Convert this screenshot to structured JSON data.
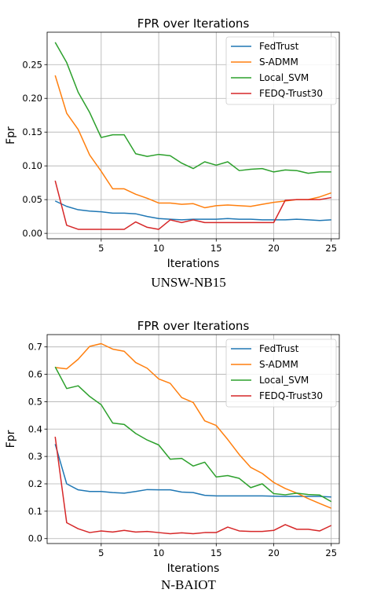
{
  "figures": [
    {
      "caption": "UNSW-NB15",
      "chart_data": {
        "type": "line",
        "title": "FPR over Iterations",
        "xlabel": "Iterations",
        "ylabel": "Fpr",
        "x": [
          1,
          2,
          3,
          4,
          5,
          6,
          7,
          8,
          9,
          10,
          11,
          12,
          13,
          14,
          15,
          16,
          17,
          18,
          19,
          20,
          21,
          22,
          23,
          24,
          25
        ],
        "xlim": [
          0.3,
          25.7
        ],
        "ylim": [
          -0.008,
          0.298
        ],
        "xticks": [
          0,
          5,
          10,
          15,
          20,
          25
        ],
        "yticks": [
          0.0,
          0.05,
          0.1,
          0.15,
          0.2,
          0.25
        ],
        "ytick_labels": [
          "0.00",
          "0.05",
          "0.10",
          "0.15",
          "0.20",
          "0.25"
        ],
        "grid": true,
        "legend_position": "top-right",
        "series": [
          {
            "name": "FedTrust",
            "color": "#1f77b4",
            "values": [
              0.048,
              0.04,
              0.035,
              0.033,
              0.032,
              0.03,
              0.03,
              0.029,
              0.025,
              0.022,
              0.021,
              0.02,
              0.021,
              0.021,
              0.021,
              0.022,
              0.021,
              0.021,
              0.02,
              0.02,
              0.02,
              0.021,
              0.02,
              0.019,
              0.02
            ]
          },
          {
            "name": "S-ADMM",
            "color": "#ff7f0e",
            "values": [
              0.234,
              0.178,
              0.154,
              0.116,
              0.092,
              0.066,
              0.066,
              0.058,
              0.052,
              0.045,
              0.045,
              0.043,
              0.044,
              0.038,
              0.041,
              0.042,
              0.041,
              0.04,
              0.043,
              0.046,
              0.048,
              0.05,
              0.05,
              0.054,
              0.06
            ]
          },
          {
            "name": "Local_SVM",
            "color": "#2ca02c",
            "values": [
              0.283,
              0.253,
              0.209,
              0.179,
              0.142,
              0.146,
              0.146,
              0.118,
              0.114,
              0.117,
              0.115,
              0.104,
              0.096,
              0.106,
              0.101,
              0.106,
              0.093,
              0.095,
              0.096,
              0.091,
              0.094,
              0.093,
              0.089,
              0.091,
              0.091
            ]
          },
          {
            "name": "FEDQ-Trust30",
            "color": "#d62728",
            "values": [
              0.078,
              0.012,
              0.006,
              0.006,
              0.006,
              0.006,
              0.006,
              0.017,
              0.009,
              0.006,
              0.02,
              0.016,
              0.02,
              0.016,
              0.016,
              0.016,
              0.016,
              0.016,
              0.016,
              0.016,
              0.049,
              0.05,
              0.05,
              0.05,
              0.053
            ]
          }
        ]
      }
    },
    {
      "caption": "N-BAIOT",
      "chart_data": {
        "type": "line",
        "title": "FPR over Iterations",
        "xlabel": "Iterations",
        "ylabel": "Fpr",
        "x": [
          1,
          2,
          3,
          4,
          5,
          6,
          7,
          8,
          9,
          10,
          11,
          12,
          13,
          14,
          15,
          16,
          17,
          18,
          19,
          20,
          21,
          22,
          23,
          24,
          25
        ],
        "xlim": [
          0.3,
          25.7
        ],
        "ylim": [
          -0.018,
          0.745
        ],
        "xticks": [
          0,
          5,
          10,
          15,
          20,
          25
        ],
        "yticks": [
          0.0,
          0.1,
          0.2,
          0.3,
          0.4,
          0.5,
          0.6,
          0.7
        ],
        "ytick_labels": [
          "0.0",
          "0.1",
          "0.2",
          "0.3",
          "0.4",
          "0.5",
          "0.6",
          "0.7"
        ],
        "grid": true,
        "legend_position": "top-right",
        "series": [
          {
            "name": "FedTrust",
            "color": "#1f77b4",
            "values": [
              0.345,
              0.2,
              0.178,
              0.172,
              0.172,
              0.168,
              0.166,
              0.172,
              0.179,
              0.178,
              0.178,
              0.17,
              0.168,
              0.158,
              0.156,
              0.156,
              0.156,
              0.156,
              0.156,
              0.155,
              0.154,
              0.154,
              0.154,
              0.154,
              0.152
            ]
          },
          {
            "name": "S-ADMM",
            "color": "#ff7f0e",
            "values": [
              0.625,
              0.62,
              0.655,
              0.702,
              0.712,
              0.692,
              0.684,
              0.643,
              0.622,
              0.583,
              0.567,
              0.515,
              0.497,
              0.43,
              0.413,
              0.362,
              0.307,
              0.26,
              0.238,
              0.205,
              0.183,
              0.166,
              0.146,
              0.128,
              0.111
            ]
          },
          {
            "name": "Local_SVM",
            "color": "#2ca02c",
            "values": [
              0.627,
              0.548,
              0.558,
              0.519,
              0.489,
              0.422,
              0.417,
              0.384,
              0.36,
              0.342,
              0.29,
              0.293,
              0.265,
              0.279,
              0.225,
              0.23,
              0.22,
              0.186,
              0.2,
              0.164,
              0.16,
              0.166,
              0.161,
              0.159,
              0.135
            ]
          },
          {
            "name": "FEDQ-Trust30",
            "color": "#d62728",
            "values": [
              0.372,
              0.058,
              0.036,
              0.022,
              0.028,
              0.024,
              0.03,
              0.024,
              0.026,
              0.022,
              0.018,
              0.021,
              0.018,
              0.022,
              0.022,
              0.042,
              0.028,
              0.026,
              0.026,
              0.03,
              0.051,
              0.034,
              0.034,
              0.028,
              0.048
            ]
          }
        ]
      }
    }
  ]
}
